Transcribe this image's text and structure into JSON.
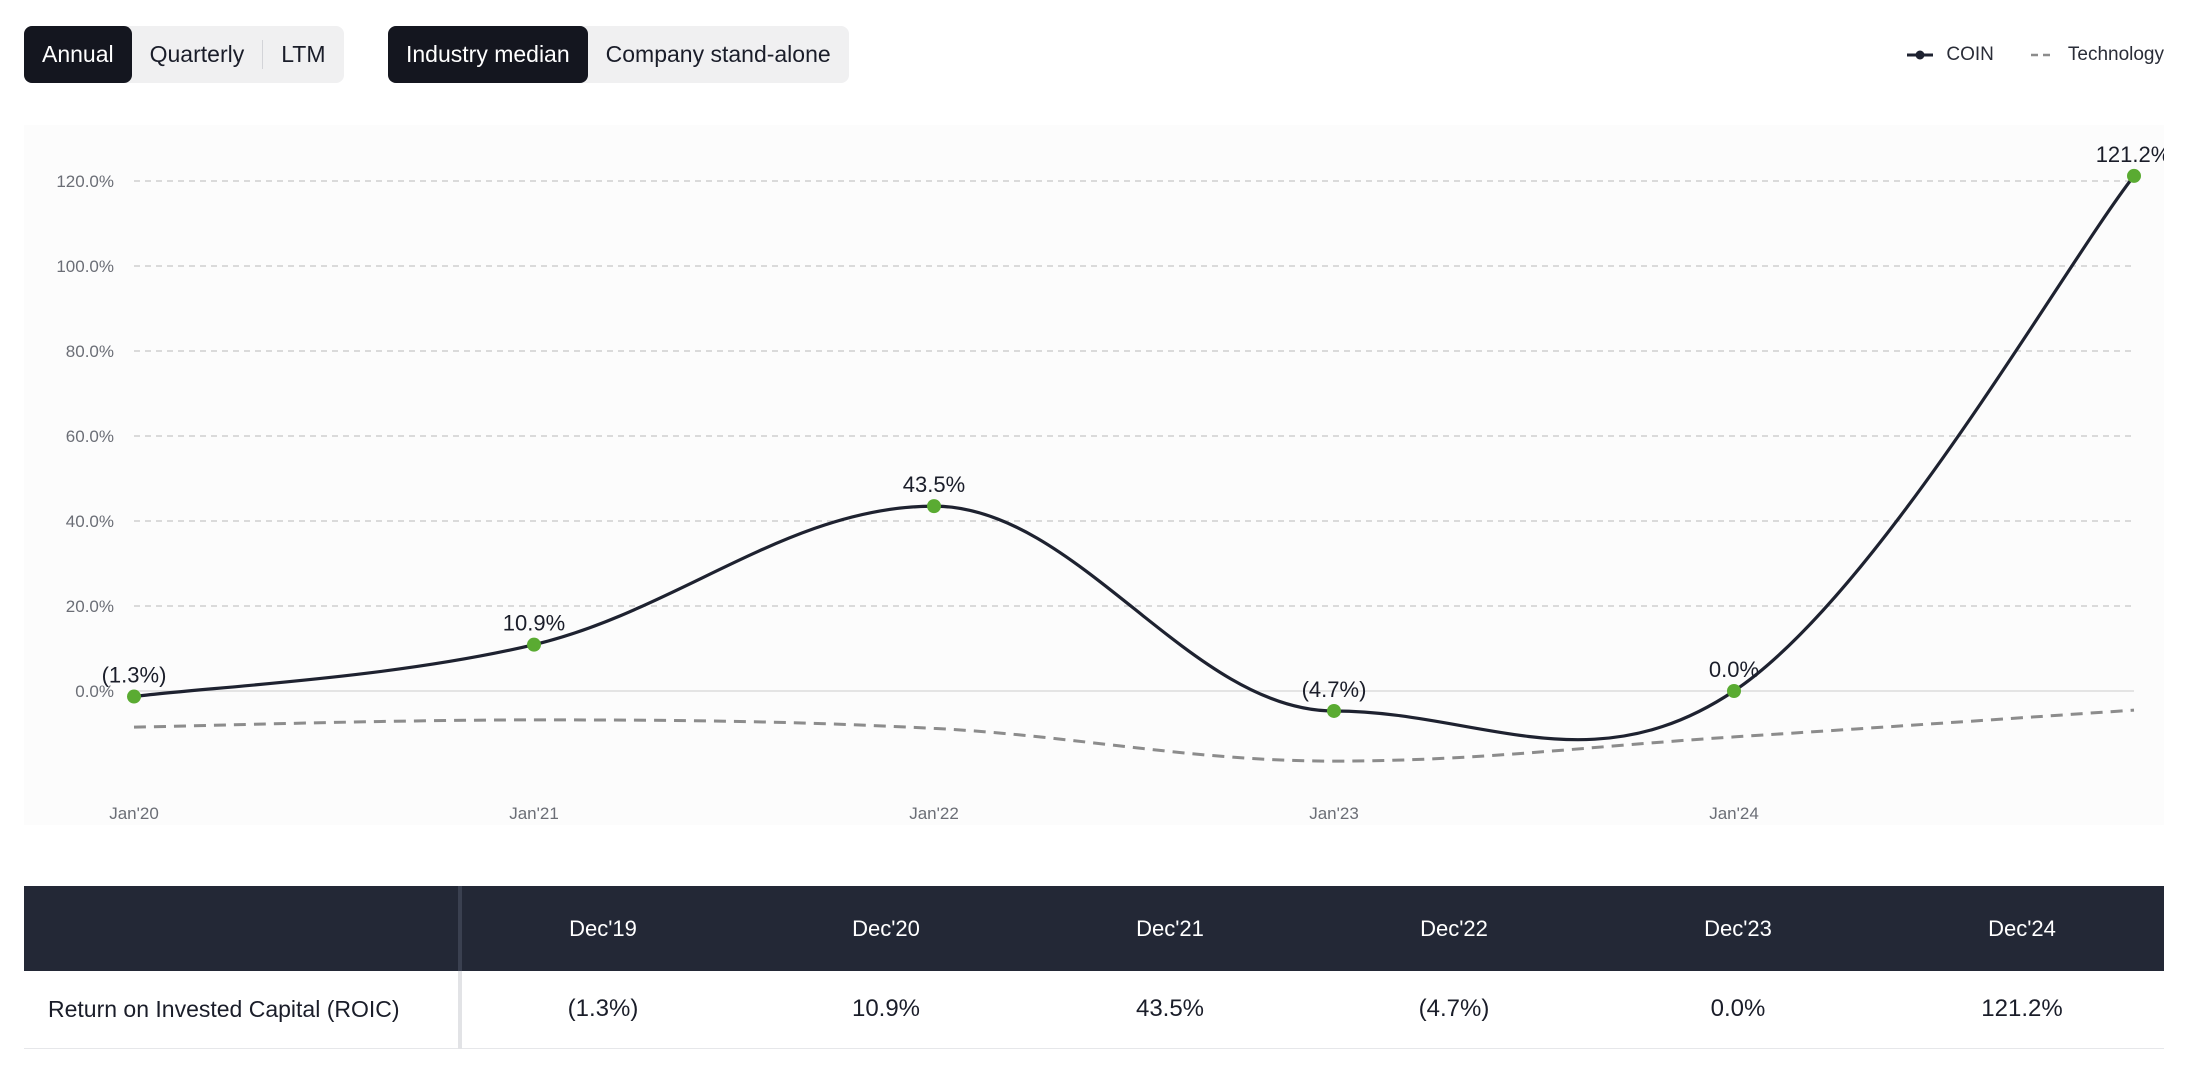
{
  "toolbar": {
    "period_tabs": [
      {
        "label": "Annual",
        "active": true
      },
      {
        "label": "Quarterly",
        "active": false
      },
      {
        "label": "LTM",
        "active": false
      }
    ],
    "benchmark_tabs": [
      {
        "label": "Industry median",
        "active": true
      },
      {
        "label": "Company stand-alone",
        "active": false
      }
    ]
  },
  "legend": {
    "items": [
      {
        "label": "COIN",
        "style": "solid-dot",
        "color": "#1e2230"
      },
      {
        "label": "Technology",
        "style": "dashed",
        "color": "#8c8c8c"
      }
    ]
  },
  "chart_data": {
    "type": "line",
    "title": "",
    "xlabel": "",
    "ylabel": "",
    "x_ticks": [
      "Jan'20",
      "Jan'21",
      "Jan'22",
      "Jan'23",
      "Jan'24"
    ],
    "y_ticks": [
      "0.0%",
      "20.0%",
      "40.0%",
      "60.0%",
      "80.0%",
      "100.0%",
      "120.0%"
    ],
    "ylim": [
      -30,
      125
    ],
    "grid": true,
    "legend_position": "top-right",
    "series": [
      {
        "name": "COIN",
        "color": "#1e2230",
        "marker_color": "#5aab32",
        "x": [
          "Dec'19",
          "Dec'20",
          "Dec'21",
          "Dec'22",
          "Dec'23",
          "Dec'24"
        ],
        "values": [
          -1.3,
          10.9,
          43.5,
          -4.7,
          0.0,
          121.2
        ],
        "labels": [
          "(1.3%)",
          "10.9%",
          "43.5%",
          "(4.7%)",
          "0.0%",
          "121.2%"
        ]
      },
      {
        "name": "Technology",
        "color": "#8c8c8c",
        "dashed": true,
        "x": [
          "Dec'19",
          "Dec'20",
          "Dec'21",
          "Dec'22",
          "Dec'23",
          "Dec'24"
        ],
        "values": [
          -8.5,
          -6.8,
          -8.8,
          -16.5,
          -10.8,
          -4.5
        ]
      }
    ]
  },
  "table": {
    "row_header": "",
    "columns": [
      "Dec'19",
      "Dec'20",
      "Dec'21",
      "Dec'22",
      "Dec'23",
      "Dec'24"
    ],
    "rows": [
      {
        "label": "Return on Invested Capital (ROIC)",
        "values": [
          "(1.3%)",
          "10.9%",
          "43.5%",
          "(4.7%)",
          "0.0%",
          "121.2%"
        ]
      }
    ]
  }
}
